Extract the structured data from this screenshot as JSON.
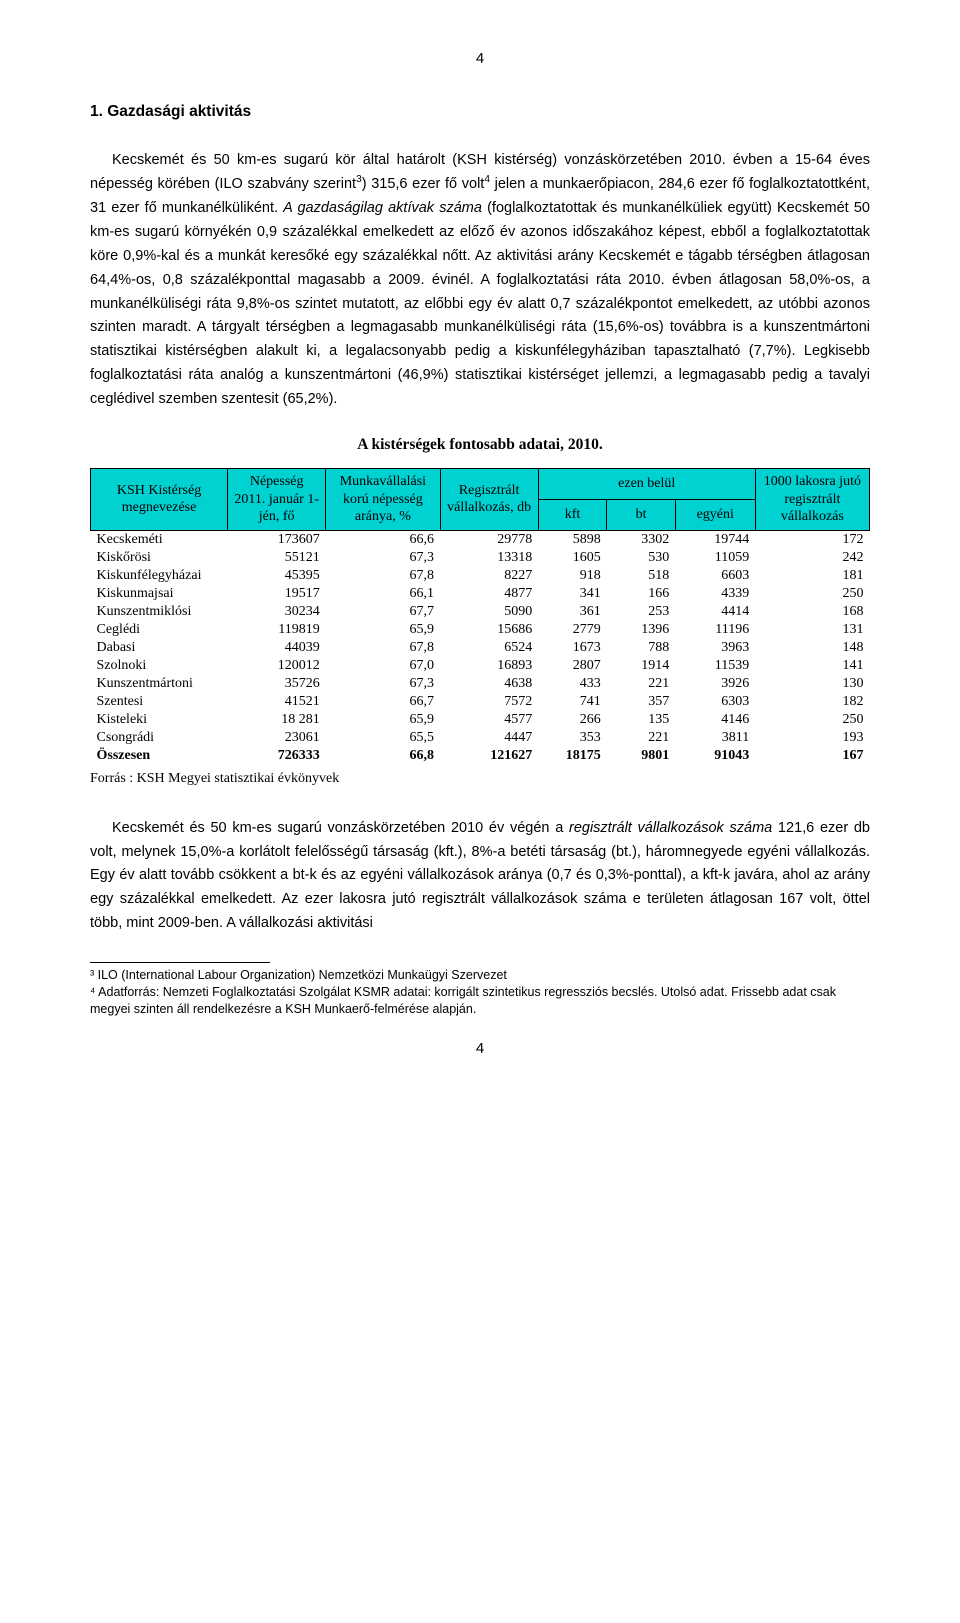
{
  "page": {
    "number_top": "4",
    "number_bottom": "4"
  },
  "heading": "1.  Gazdasági aktivitás",
  "paragraph1": "Kecskemét és 50 km-es sugarú kör által határolt (KSH kistérség) vonzáskörzetében 2010. évben a 15-64 éves népesség körében (ILO szabvány szerint³) 315,6 ezer fő volt⁴ jelen a munkaerőpiacon, 284,6 ezer fő foglalkoztatottként, 31 ezer fő munkanélküliként. A gazdaságilag aktívak száma (foglalkoztatottak és munkanélküliek együtt) Kecskemét 50 km-es sugarú környékén 0,9 százalékkal emelkedett az előző év azonos időszakához képest, ebből a foglalkoztatottak köre 0,9%-kal és a munkát keresőké egy százalékkal nőtt. Az aktivitási arány Kecskemét e tágabb térségben átlagosan 64,4%-os, 0,8 százalékponttal magasabb a 2009. évinél. A foglalkoztatási ráta 2010. évben átlagosan 58,0%-os, a munkanélküliségi ráta 9,8%-os szintet mutatott, az előbbi egy év alatt 0,7 százalékpontot emelkedett, az utóbbi azonos szinten maradt. A tárgyalt térségben a legmagasabb munkanélküliségi ráta (15,6%-os) továbbra is a kunszentmártoni statisztikai kistérségben alakult ki, a legalacsonyabb pedig a kiskunfélegyháziban tapasztalható (7,7%). Legkisebb foglalkoztatási ráta analóg a kunszentmártoni (46,9%) statisztikai kistérséget jellemzi, a legmagasabb pedig a tavalyi ceglédivel szemben szentesit (65,2%).",
  "table": {
    "title": "A kistérségek fontosabb adatai, 2010.",
    "header": {
      "col1": "KSH Kistérség megnevezése",
      "col2": "Népesség 2011. január 1-jén, fő",
      "col3": "Munkavállalási korú népesség aránya, %",
      "col4": "Regisztrált vállalkozás, db",
      "group_ezen": "ezen belül",
      "col5": "kft",
      "col6": "bt",
      "col7": "egyéni",
      "col8": "1000 lakosra jutó regisztrált vállalkozás"
    },
    "rows": [
      {
        "name": "Kecskeméti",
        "nep": "173607",
        "arany": "66,6",
        "reg": "29778",
        "kft": "5898",
        "bt": "3302",
        "egyeni": "19744",
        "per1000": "172"
      },
      {
        "name": "Kiskőrösi",
        "nep": "55121",
        "arany": "67,3",
        "reg": "13318",
        "kft": "1605",
        "bt": "530",
        "egyeni": "11059",
        "per1000": "242"
      },
      {
        "name": "Kiskunfélegyházai",
        "nep": "45395",
        "arany": "67,8",
        "reg": "8227",
        "kft": "918",
        "bt": "518",
        "egyeni": "6603",
        "per1000": "181"
      },
      {
        "name": "Kiskunmajsai",
        "nep": "19517",
        "arany": "66,1",
        "reg": "4877",
        "kft": "341",
        "bt": "166",
        "egyeni": "4339",
        "per1000": "250"
      },
      {
        "name": "Kunszentmiklósi",
        "nep": "30234",
        "arany": "67,7",
        "reg": "5090",
        "kft": "361",
        "bt": "253",
        "egyeni": "4414",
        "per1000": "168"
      },
      {
        "name": "Ceglédi",
        "nep": "119819",
        "arany": "65,9",
        "reg": "15686",
        "kft": "2779",
        "bt": "1396",
        "egyeni": "11196",
        "per1000": "131"
      },
      {
        "name": "Dabasi",
        "nep": "44039",
        "arany": "67,8",
        "reg": "6524",
        "kft": "1673",
        "bt": "788",
        "egyeni": "3963",
        "per1000": "148"
      },
      {
        "name": "Szolnoki",
        "nep": "120012",
        "arany": "67,0",
        "reg": "16893",
        "kft": "2807",
        "bt": "1914",
        "egyeni": "11539",
        "per1000": "141"
      },
      {
        "name": "Kunszentmártoni",
        "nep": "35726",
        "arany": "67,3",
        "reg": "4638",
        "kft": "433",
        "bt": "221",
        "egyeni": "3926",
        "per1000": "130"
      },
      {
        "name": "Szentesi",
        "nep": "41521",
        "arany": "66,7",
        "reg": "7572",
        "kft": "741",
        "bt": "357",
        "egyeni": "6303",
        "per1000": "182"
      },
      {
        "name": "Kisteleki",
        "nep": "18 281",
        "arany": "65,9",
        "reg": "4577",
        "kft": "266",
        "bt": "135",
        "egyeni": "4146",
        "per1000": "250"
      },
      {
        "name": "Csongrádi",
        "nep": "23061",
        "arany": "65,5",
        "reg": "4447",
        "kft": "353",
        "bt": "221",
        "egyeni": "3811",
        "per1000": "193"
      }
    ],
    "total": {
      "name": "Összesen",
      "nep": "726333",
      "arany": "66,8",
      "reg": "121627",
      "kft": "18175",
      "bt": "9801",
      "egyeni": "91043",
      "per1000": "167"
    },
    "source": "Forrás : KSH Megyei statisztikai évkönyvek"
  },
  "paragraph2": "Kecskemét és 50 km-es sugarú vonzáskörzetében 2010 év végén a regisztrált vállalkozások száma 121,6 ezer db volt, melynek 15,0%-a korlátolt felelősségű társaság (kft.), 8%-a betéti társaság (bt.), háromnegyede egyéni vállalkozás. Egy év alatt tovább csökkent a bt-k és az egyéni vállalkozások aránya (0,7 és 0,3%-ponttal), a kft-k javára, ahol az arány egy százalékkal emelkedett. Az ezer lakosra jutó regisztrált vállalkozások száma e területen átlagosan 167 volt, öttel több, mint 2009-ben. A vállalkozási aktivitási",
  "footnotes": {
    "f3": "³ ILO (International Labour Organization) Nemzetközi Munkaügyi Szervezet",
    "f4": "⁴ Adatforrás: Nemzeti Foglalkoztatási Szolgálat KSMR adatai: korrigált szintetikus regressziós becslés. Utolsó adat. Frissebb adat csak megyei szinten áll rendelkezésre a KSH Munkaerő-felmérése alapján."
  },
  "colors": {
    "header_bg": "#00d1d1",
    "text": "#000000",
    "bg": "#ffffff"
  }
}
